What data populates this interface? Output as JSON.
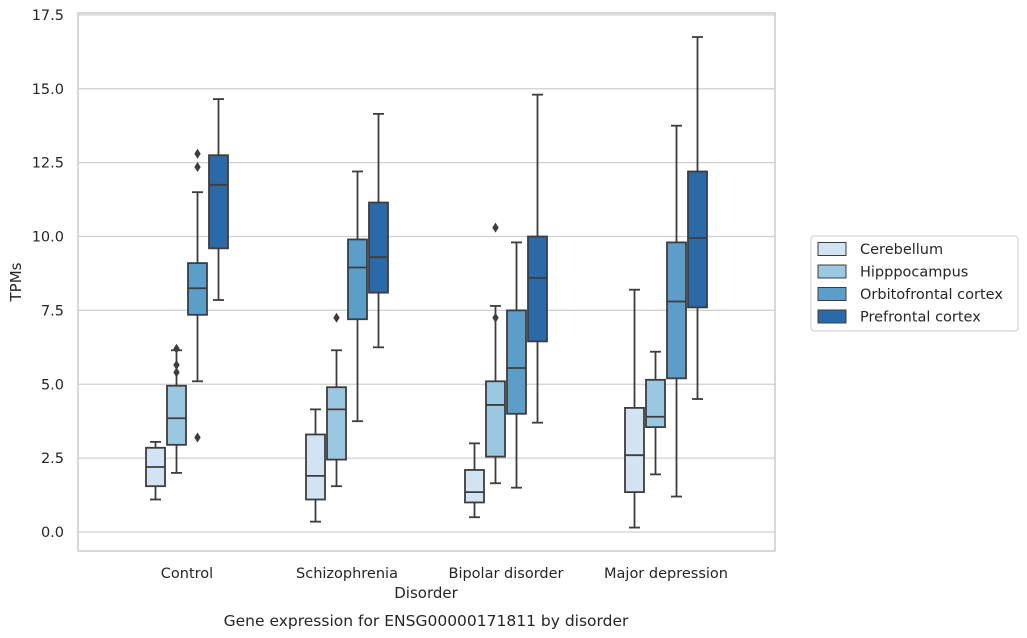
{
  "chart_data": {
    "type": "box",
    "title": "",
    "caption": "Gene expression for ENSG00000171811 by disorder",
    "xlabel": "Disorder",
    "ylabel": "TPMs",
    "ylim": [
      -0.65,
      17.6
    ],
    "yticks": [
      "0.0",
      "2.5",
      "5.0",
      "7.5",
      "10.0",
      "12.5",
      "15.0",
      "17.5"
    ],
    "ytick_values": [
      0,
      2.5,
      5,
      7.5,
      10,
      12.5,
      15,
      17.5
    ],
    "categories": [
      "Control",
      "Schizophrenia",
      "Bipolar disorder",
      "Major depression"
    ],
    "grid": "horizontal",
    "legend_position": "right",
    "series": [
      {
        "name": "Cerebellum",
        "color": "#d2e3f3",
        "boxes": [
          {
            "whisker_low": 1.1,
            "q1": 1.55,
            "median": 2.2,
            "q3": 2.85,
            "whisker_high": 3.05,
            "outliers": []
          },
          {
            "whisker_low": 0.35,
            "q1": 1.1,
            "median": 1.9,
            "q3": 3.3,
            "whisker_high": 4.15,
            "outliers": []
          },
          {
            "whisker_low": 0.5,
            "q1": 1.0,
            "median": 1.35,
            "q3": 2.1,
            "whisker_high": 3.0,
            "outliers": []
          },
          {
            "whisker_low": 0.15,
            "q1": 1.35,
            "median": 2.6,
            "q3": 4.2,
            "whisker_high": 8.2,
            "outliers": []
          }
        ]
      },
      {
        "name": "Hipppocampus",
        "color": "#9ac8e0",
        "boxes": [
          {
            "whisker_low": 2.0,
            "q1": 2.95,
            "median": 3.85,
            "q3": 4.95,
            "whisker_high": 6.15,
            "outliers": [
              5.4,
              5.65,
              6.2
            ]
          },
          {
            "whisker_low": 1.55,
            "q1": 2.45,
            "median": 4.15,
            "q3": 4.9,
            "whisker_high": 6.15,
            "outliers": [
              7.25
            ]
          },
          {
            "whisker_low": 1.65,
            "q1": 2.55,
            "median": 4.3,
            "q3": 5.1,
            "whisker_high": 7.65,
            "outliers": [
              7.25,
              10.3
            ]
          },
          {
            "whisker_low": 1.95,
            "q1": 3.55,
            "median": 3.9,
            "q3": 5.15,
            "whisker_high": 6.1,
            "outliers": []
          }
        ]
      },
      {
        "name": "Orbitofrontal cortex",
        "color": "#5a9ec9",
        "boxes": [
          {
            "whisker_low": 5.1,
            "q1": 7.35,
            "median": 8.25,
            "q3": 9.1,
            "whisker_high": 11.5,
            "outliers": [
              3.2,
              12.35,
              12.8
            ]
          },
          {
            "whisker_low": 3.75,
            "q1": 7.2,
            "median": 8.95,
            "q3": 9.9,
            "whisker_high": 12.2,
            "outliers": []
          },
          {
            "whisker_low": 1.5,
            "q1": 4.0,
            "median": 5.55,
            "q3": 7.5,
            "whisker_high": 9.8,
            "outliers": []
          },
          {
            "whisker_low": 1.2,
            "q1": 5.2,
            "median": 7.8,
            "q3": 9.8,
            "whisker_high": 13.75,
            "outliers": []
          }
        ]
      },
      {
        "name": "Prefrontal cortex",
        "color": "#2a6aa9",
        "boxes": [
          {
            "whisker_low": 7.85,
            "q1": 9.6,
            "median": 11.75,
            "q3": 12.75,
            "whisker_high": 14.65,
            "outliers": []
          },
          {
            "whisker_low": 6.25,
            "q1": 8.1,
            "median": 9.3,
            "q3": 11.15,
            "whisker_high": 14.15,
            "outliers": []
          },
          {
            "whisker_low": 3.7,
            "q1": 6.45,
            "median": 8.6,
            "q3": 10.0,
            "whisker_high": 14.8,
            "outliers": []
          },
          {
            "whisker_low": 4.5,
            "q1": 7.6,
            "median": 9.95,
            "q3": 12.2,
            "whisker_high": 16.75,
            "outliers": []
          }
        ]
      }
    ]
  }
}
